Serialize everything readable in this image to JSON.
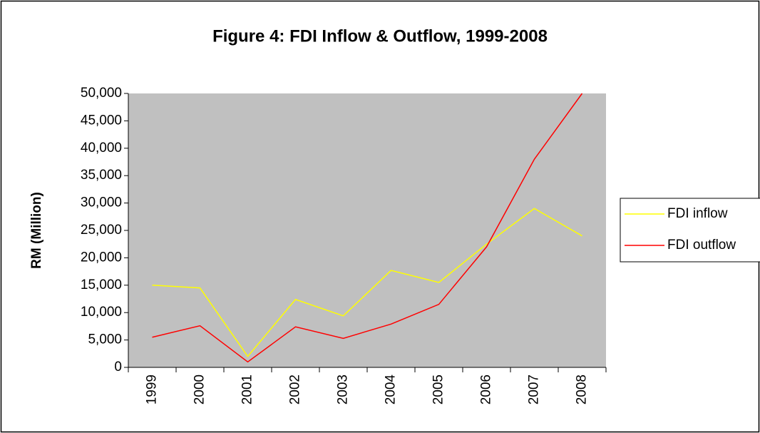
{
  "chart_data": {
    "type": "line",
    "title": "Figure 4: FDI Inflow & Outflow, 1999-2008",
    "y_label": "RM (Million)",
    "categories": [
      "1999",
      "2000",
      "2001",
      "2002",
      "2003",
      "2004",
      "2005",
      "2006",
      "2007",
      "2008"
    ],
    "series": [
      {
        "name": "FDI inflow",
        "color": "#ffff00",
        "values": [
          15000,
          14500,
          2000,
          12400,
          9400,
          17700,
          15500,
          22500,
          29000,
          24000
        ]
      },
      {
        "name": "FDI outflow",
        "color": "#ff0000",
        "values": [
          5500,
          7600,
          1000,
          7400,
          5300,
          7900,
          11500,
          22000,
          38000,
          50000
        ]
      }
    ],
    "ylim": [
      0,
      50000
    ],
    "yticks": [
      0,
      {
        "value": 5000,
        "label": "5,000"
      },
      {
        "value": 10000,
        "label": "10,000"
      },
      {
        "value": 15000,
        "label": "15,000"
      },
      {
        "value": 20000,
        "label": "20,000"
      },
      {
        "value": 25000,
        "label": "25,000"
      },
      {
        "value": 30000,
        "label": "30,000"
      },
      {
        "value": 35000,
        "label": "35,000"
      },
      {
        "value": 40000,
        "label": "40,000"
      },
      {
        "value": 45000,
        "label": "45,000"
      },
      {
        "value": 50000,
        "label": "50,000"
      }
    ],
    "plot_background": "#c0c0c0",
    "grid": false,
    "legend": "right"
  }
}
